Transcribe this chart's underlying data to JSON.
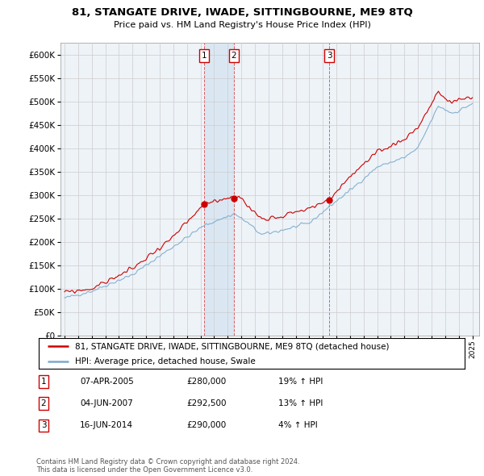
{
  "title": "81, STANGATE DRIVE, IWADE, SITTINGBOURNE, ME9 8TQ",
  "subtitle": "Price paid vs. HM Land Registry's House Price Index (HPI)",
  "ylim": [
    0,
    620000
  ],
  "xlim_start": 1995.0,
  "xlim_end": 2025.5,
  "transaction_dates": [
    2005.27,
    2007.46,
    2014.46
  ],
  "transaction_prices": [
    280000,
    292500,
    290000
  ],
  "transaction_labels": [
    "1",
    "2",
    "3"
  ],
  "legend_line1": "81, STANGATE DRIVE, IWADE, SITTINGBOURNE, ME9 8TQ (detached house)",
  "legend_line2": "HPI: Average price, detached house, Swale",
  "table_data": [
    [
      "1",
      "07-APR-2005",
      "£280,000",
      "19% ↑ HPI"
    ],
    [
      "2",
      "04-JUN-2007",
      "£292,500",
      "13% ↑ HPI"
    ],
    [
      "3",
      "16-JUN-2014",
      "£290,000",
      "4% ↑ HPI"
    ]
  ],
  "footnote": "Contains HM Land Registry data © Crown copyright and database right 2024.\nThis data is licensed under the Open Government Licence v3.0.",
  "line_color_red": "#cc0000",
  "line_color_blue": "#7aaacc",
  "fill_color": "#ddeeff",
  "grid_color": "#cccccc",
  "background_color": "#ffffff",
  "chart_bg": "#f0f4f8"
}
